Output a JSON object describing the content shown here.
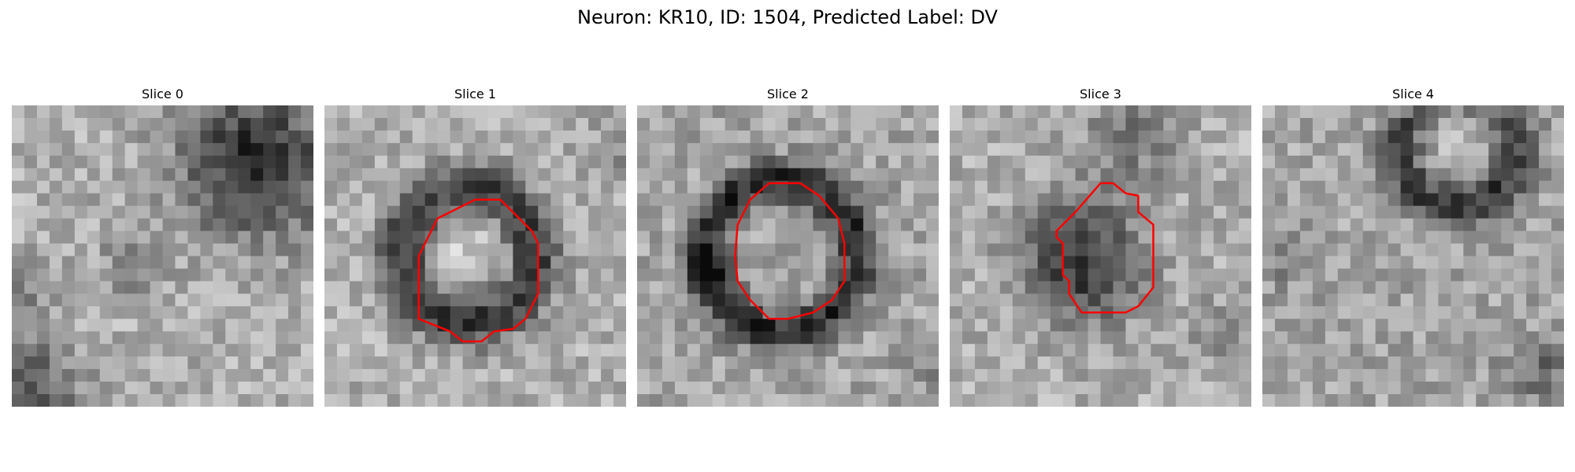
{
  "figure": {
    "title": "Neuron: KR10, ID: 1504, Predicted Label: DV"
  },
  "colors": {
    "contour": "#ff0000"
  },
  "panels": [
    {
      "title": "Slice 0",
      "has_contour": false
    },
    {
      "title": "Slice 1",
      "has_contour": true
    },
    {
      "title": "Slice 2",
      "has_contour": true
    },
    {
      "title": "Slice 3",
      "has_contour": true
    },
    {
      "title": "Slice 4",
      "has_contour": false
    }
  ]
}
